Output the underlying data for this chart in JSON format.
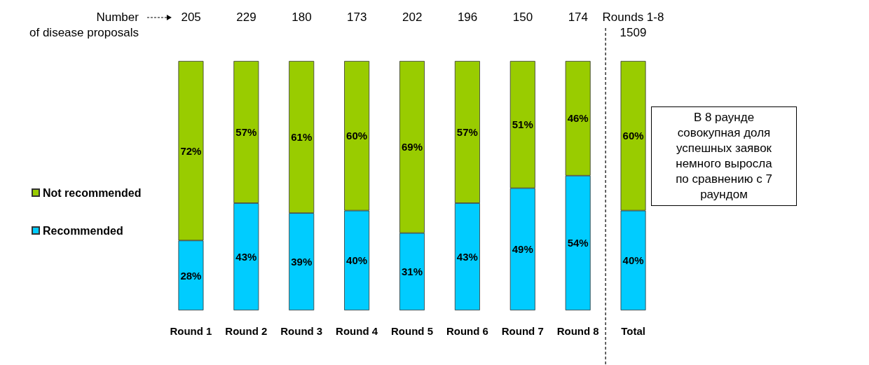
{
  "chart_data": {
    "type": "bar",
    "stacked": true,
    "categories": [
      "Round 1",
      "Round 2",
      "Round 3",
      "Round 4",
      "Round 5",
      "Round 6",
      "Round 7",
      "Round 8",
      "Total"
    ],
    "series": [
      {
        "name": "Recommended",
        "color": "#00ccff",
        "values": [
          28,
          43,
          39,
          40,
          31,
          43,
          49,
          54,
          40
        ],
        "value_labels": [
          "28%",
          "43%",
          "39%",
          "40%",
          "31%",
          "43%",
          "49%",
          "54%",
          "40%"
        ]
      },
      {
        "name": "Not recommended",
        "color": "#99cc00",
        "values": [
          72,
          57,
          61,
          60,
          69,
          57,
          51,
          46,
          60
        ],
        "value_labels": [
          "72%",
          "57%",
          "61%",
          "60%",
          "69%",
          "57%",
          "51%",
          "46%",
          "60%"
        ]
      }
    ],
    "ylim": [
      0,
      100
    ],
    "tick_labels": "x",
    "legend": "left",
    "grid": false,
    "annotations": [
      "Number\nof disease proposals",
      "В 8 раунде\nсовокупная доля\nуспешных заявок\nнемного выросла\nпо сравнению с 7\nраундом",
      "205",
      "229",
      "180",
      "173",
      "202",
      "196",
      "150",
      "174",
      "Rounds 1-8\n1509"
    ]
  }
}
